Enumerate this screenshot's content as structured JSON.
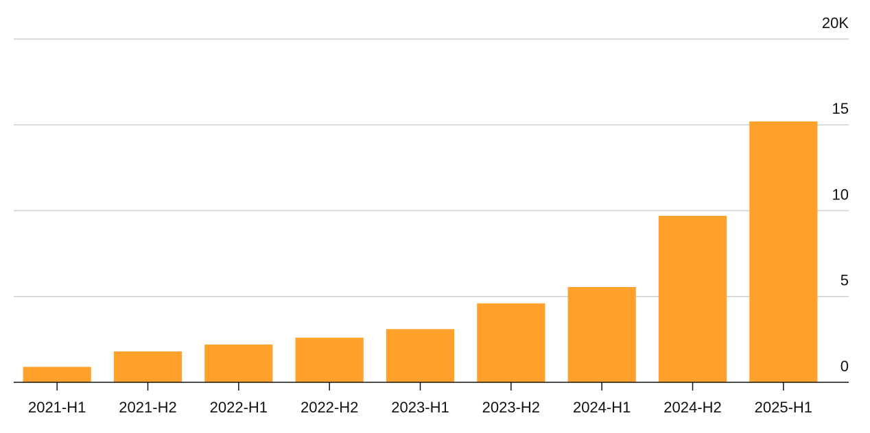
{
  "chart_data": {
    "type": "bar",
    "categories": [
      "2021-H1",
      "2021-H2",
      "2022-H1",
      "2022-H2",
      "2023-H1",
      "2023-H2",
      "2024-H1",
      "2024-H2",
      "2025-H1"
    ],
    "values": [
      0.9,
      1.8,
      2.2,
      2.6,
      3.1,
      4.6,
      5.55,
      9.7,
      15.2
    ],
    "color": "#ffa12b",
    "ylim": [
      0,
      20
    ],
    "yticks": [
      0,
      5,
      10,
      15,
      {
        "value": 20,
        "label": "20K"
      }
    ],
    "grid": true
  }
}
